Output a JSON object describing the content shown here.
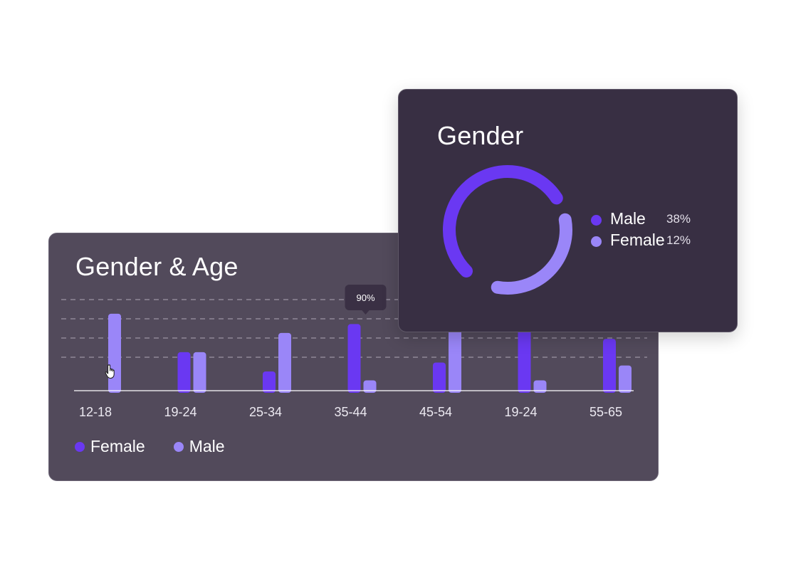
{
  "colors": {
    "female": "#6a38f2",
    "male": "#9a86f8",
    "card_age_bg": "#524a5b",
    "card_gender_bg": "#382f43",
    "tooltip_bg": "#3a3044"
  },
  "age_card": {
    "title": "Gender & Age",
    "tooltip": "90%",
    "legend": [
      {
        "label": "Female",
        "color": "#6a38f2"
      },
      {
        "label": "Male",
        "color": "#9a86f8"
      }
    ]
  },
  "gender_card": {
    "title": "Gender",
    "legend": [
      {
        "label": "Male",
        "value": "38%",
        "color": "#6a38f2"
      },
      {
        "label": "Female",
        "value": "12%",
        "color": "#9a86f8"
      }
    ]
  },
  "chart_data": [
    {
      "type": "bar",
      "title": "Gender & Age",
      "categories": [
        "12-18",
        "19-24",
        "25-34",
        "35-44",
        "45-54",
        "19-24",
        "55-65"
      ],
      "series": [
        {
          "name": "Female",
          "color": "#6a38f2",
          "values": [
            0,
            52,
            26,
            90,
            38,
            90,
            70
          ]
        },
        {
          "name": "Male",
          "color": "#9a86f8",
          "values": [
            104,
            52,
            78,
            14,
            90,
            14,
            34
          ]
        }
      ],
      "ylim": [
        0,
        120
      ],
      "grid": true,
      "legend": "bottom-left",
      "annotations": [
        {
          "category": "35-44",
          "series": "Female",
          "text": "90%"
        }
      ]
    },
    {
      "type": "pie",
      "title": "Gender",
      "labels": [
        "Male",
        "Female"
      ],
      "values": [
        38,
        12
      ],
      "colors": [
        "#6a38f2",
        "#9a86f8"
      ],
      "legend": "right"
    }
  ]
}
